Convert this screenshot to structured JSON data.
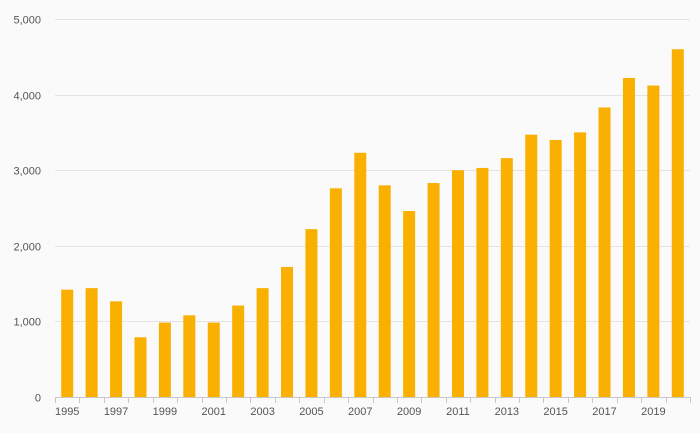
{
  "chart_data": {
    "type": "bar",
    "title": "",
    "xlabel": "",
    "ylabel": "",
    "categories": [
      "1995",
      "1996",
      "1997",
      "1998",
      "1999",
      "2000",
      "2001",
      "2002",
      "2003",
      "2004",
      "2005",
      "2006",
      "2007",
      "2008",
      "2009",
      "2010",
      "2011",
      "2012",
      "2013",
      "2014",
      "2015",
      "2016",
      "2017",
      "2018",
      "2019",
      "2020"
    ],
    "x_tick_labels": [
      "1995",
      "1997",
      "1999",
      "2001",
      "2003",
      "2005",
      "2007",
      "2009",
      "2011",
      "2013",
      "2015",
      "2017",
      "2019"
    ],
    "values": [
      1420,
      1440,
      1265,
      790,
      985,
      1080,
      985,
      1210,
      1440,
      1720,
      2220,
      2760,
      3230,
      2800,
      2460,
      2830,
      3000,
      3030,
      3160,
      3470,
      3400,
      3500,
      3830,
      4220,
      4120,
      4600
    ],
    "ylim": [
      0,
      5000
    ],
    "y_ticks": [
      0,
      1000,
      2000,
      3000,
      4000,
      5000
    ],
    "y_tick_labels": [
      "0",
      "1,000",
      "2,000",
      "3,000",
      "4,000",
      "5,000"
    ],
    "grid": true,
    "legend": "none",
    "colors": {
      "bar": "#f9b000",
      "grid": "#e4e4e4",
      "axis": "#c8c8c8",
      "text": "#555555",
      "background": "#fafafa"
    }
  }
}
